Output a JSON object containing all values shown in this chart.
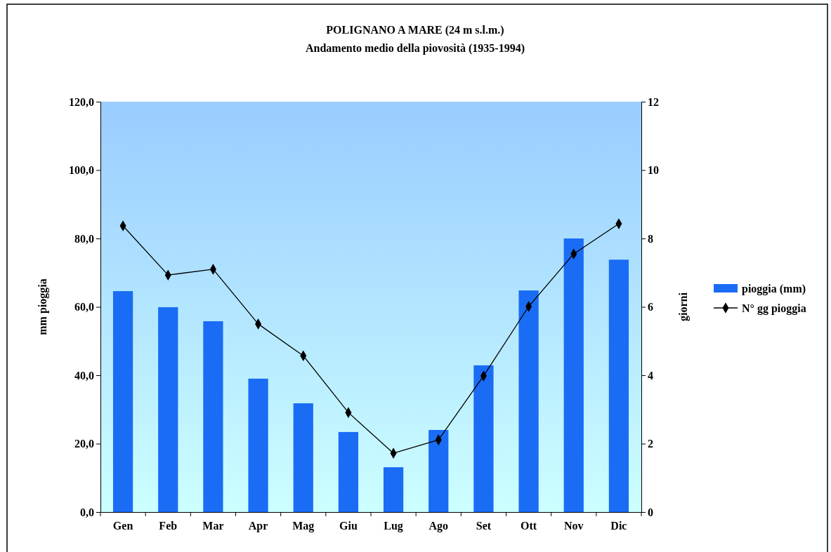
{
  "chart_data": {
    "type": "bar",
    "title": "POLIGNANO A MARE  (24 m s.l.m.)",
    "subtitle": "Andamento medio della piovosità (1935-1994)",
    "ylabel": "mm pioggia",
    "y2label": "giorni",
    "categories": [
      "Gen",
      "Feb",
      "Mar",
      "Apr",
      "Mag",
      "Giu",
      "Lug",
      "Ago",
      "Set",
      "Ott",
      "Nov",
      "Dic"
    ],
    "series": [
      {
        "name": "pioggia (mm)",
        "color": "#1a6cf5",
        "values": [
          64.6,
          59.9,
          55.8,
          39.0,
          31.8,
          23.4,
          13.1,
          24.0,
          42.9,
          64.8,
          80.0,
          73.8
        ]
      },
      {
        "name": "N° gg pioggia",
        "type": "line",
        "axis": "y2",
        "color": "#000000",
        "marker": "diamond",
        "values": [
          8.37,
          6.93,
          7.1,
          5.5,
          4.57,
          2.91,
          1.72,
          2.11,
          3.98,
          6.01,
          7.55,
          8.43
        ]
      }
    ],
    "ylim": [
      0,
      120
    ],
    "yticks": [
      {
        "value": 0,
        "label": "0,0"
      },
      {
        "value": 20,
        "label": "20,0"
      },
      {
        "value": 40,
        "label": "40,0"
      },
      {
        "value": 60,
        "label": "60,0"
      },
      {
        "value": 80,
        "label": "80,0"
      },
      {
        "value": 100,
        "label": "100,0"
      },
      {
        "value": 120,
        "label": "120,0"
      }
    ],
    "y2lim": [
      0,
      12
    ],
    "y2ticks": [
      0,
      2,
      4,
      6,
      8,
      10,
      12
    ],
    "legend": "right",
    "grid": false
  }
}
